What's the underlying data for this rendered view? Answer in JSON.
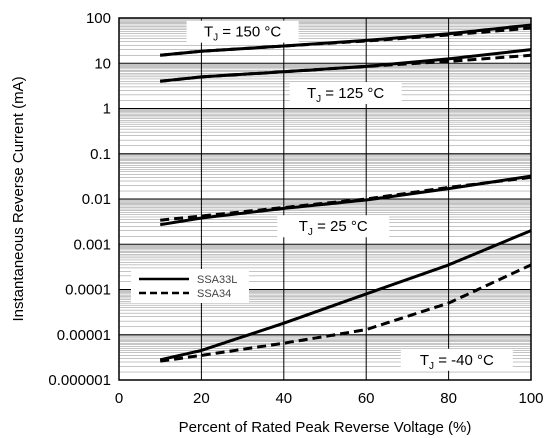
{
  "chart_data": {
    "type": "line",
    "xlabel": "Percent of Rated Peak Reverse Voltage (%)",
    "ylabel": "Instantaneous Reverse Current (mA)",
    "xlim": [
      0,
      100
    ],
    "ylim": [
      1e-06,
      100
    ],
    "yscale": "log",
    "x_ticks": [
      0,
      20,
      40,
      60,
      80,
      100
    ],
    "x_tick_labels": [
      "0",
      "20",
      "40",
      "60",
      "80",
      "100"
    ],
    "y_ticks": [
      1e-06,
      1e-05,
      0.0001,
      0.001,
      0.01,
      0.1,
      1,
      10,
      100
    ],
    "y_tick_labels": [
      "0.000001",
      "0.00001",
      "0.0001",
      "0.001",
      "0.01",
      "0.1",
      "1",
      "10",
      "100"
    ],
    "grid": true,
    "legend_position": "center-left",
    "legend": [
      {
        "name": "SSA33L",
        "style": "solid"
      },
      {
        "name": "SSA34",
        "style": "dashed"
      }
    ],
    "annotations": [
      {
        "id": "t150",
        "main": "T",
        "sub": "J",
        "rest": " = 150 °C",
        "x": 30,
        "y": 50
      },
      {
        "id": "t125",
        "main": "T",
        "sub": "J",
        "rest": " = 125 °C",
        "x": 55,
        "y": 2.2
      },
      {
        "id": "t25",
        "main": "T",
        "sub": "J",
        "rest": " = 25 °C",
        "x": 52,
        "y": 0.0025
      },
      {
        "id": "tm40",
        "main": "T",
        "sub": "J",
        "rest": " = -40 °C",
        "x": 82,
        "y": 2.8e-06
      }
    ],
    "series": [
      {
        "group": "150",
        "name": "SSA33L",
        "style": "solid",
        "x": [
          10,
          20,
          40,
          60,
          80,
          100
        ],
        "y": [
          15,
          18.5,
          24,
          32,
          45,
          70
        ]
      },
      {
        "group": "150",
        "name": "SSA34",
        "style": "dashed",
        "x": [
          10,
          20,
          40,
          60,
          80,
          100
        ],
        "y": [
          15,
          18.5,
          24,
          31,
          42,
          60
        ]
      },
      {
        "group": "125",
        "name": "SSA33L",
        "style": "solid",
        "x": [
          10,
          20,
          40,
          60,
          80,
          100
        ],
        "y": [
          4,
          5,
          6.5,
          8.5,
          12.5,
          20
        ]
      },
      {
        "group": "125",
        "name": "SSA34",
        "style": "dashed",
        "x": [
          10,
          20,
          40,
          60,
          80,
          100
        ],
        "y": [
          4,
          5,
          6.5,
          8.5,
          11,
          15
        ]
      },
      {
        "group": "25",
        "name": "SSA33L",
        "style": "solid",
        "x": [
          10,
          20,
          40,
          60,
          80,
          100
        ],
        "y": [
          0.0027,
          0.0038,
          0.0062,
          0.0095,
          0.017,
          0.032
        ]
      },
      {
        "group": "25",
        "name": "SSA34",
        "style": "dashed",
        "x": [
          10,
          20,
          40,
          60,
          80,
          100
        ],
        "y": [
          0.0034,
          0.0042,
          0.0065,
          0.01,
          0.018,
          0.03
        ]
      },
      {
        "group": "-40",
        "name": "SSA33L",
        "style": "solid",
        "x": [
          10,
          20,
          40,
          60,
          80,
          100
        ],
        "y": [
          2.8e-06,
          4.5e-06,
          1.8e-05,
          8e-05,
          0.00035,
          0.002
        ]
      },
      {
        "group": "-40",
        "name": "SSA34",
        "style": "dashed",
        "x": [
          10,
          20,
          40,
          60,
          80,
          100
        ],
        "y": [
          2.6e-06,
          3.5e-06,
          6.5e-06,
          1.3e-05,
          5e-05,
          0.00035
        ]
      }
    ]
  }
}
